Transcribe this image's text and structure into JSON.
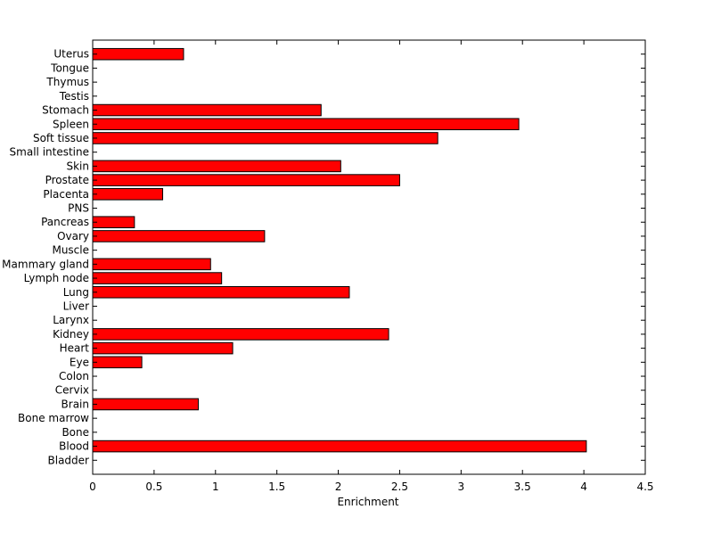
{
  "chart_data": {
    "type": "bar",
    "orientation": "horizontal",
    "title": "",
    "xlabel": "Enrichment",
    "ylabel": "",
    "xlim": [
      0,
      4.5
    ],
    "xticks": [
      0,
      0.5,
      1,
      1.5,
      2,
      2.5,
      3,
      3.5,
      4,
      4.5
    ],
    "xtick_labels": [
      "0",
      "0.5",
      "1",
      "1.5",
      "2",
      "2.5",
      "3",
      "3.5",
      "4",
      "4.5"
    ],
    "grid": false,
    "legend": "none",
    "bar_color": "#ff0000",
    "edge_color": "#000000",
    "categories": [
      "Bladder",
      "Blood",
      "Bone",
      "Bone marrow",
      "Brain",
      "Cervix",
      "Colon",
      "Eye",
      "Heart",
      "Kidney",
      "Larynx",
      "Liver",
      "Lung",
      "Lymph node",
      "Mammary gland",
      "Muscle",
      "Ovary",
      "Pancreas",
      "PNS",
      "Placenta",
      "Prostate",
      "Skin",
      "Small intestine",
      "Soft tissue",
      "Spleen",
      "Stomach",
      "Testis",
      "Thymus",
      "Tongue",
      "Uterus"
    ],
    "values": [
      0,
      4.02,
      0,
      0,
      0.86,
      0,
      0,
      0.4,
      1.14,
      2.41,
      0,
      0,
      2.09,
      1.05,
      0.96,
      0,
      1.4,
      0.34,
      0,
      0.57,
      2.5,
      2.02,
      0,
      2.81,
      3.47,
      1.86,
      0,
      0,
      0,
      0.74
    ]
  }
}
